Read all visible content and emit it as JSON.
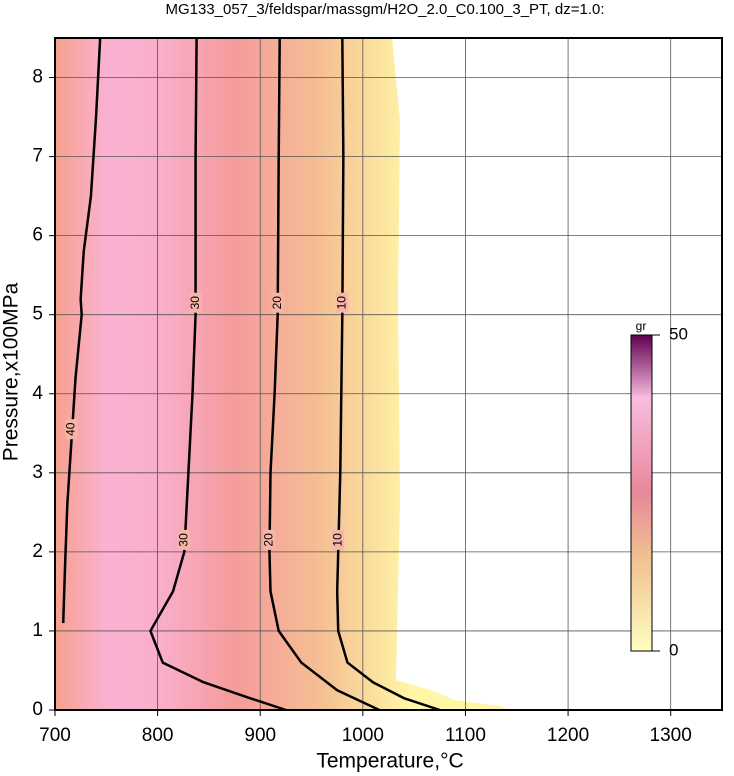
{
  "chart_data": {
    "type": "contour",
    "title": "MG133_057_3/feldspar/massgm/H2O_2.0_C0.100_3_PT, dz=1.0:",
    "xlabel": "Temperature,°C",
    "ylabel": "Pressure,x100MPa",
    "xlim": [
      700,
      1350
    ],
    "ylim": [
      0,
      8.5
    ],
    "xticks": [
      700,
      800,
      900,
      1000,
      1100,
      1200,
      1300
    ],
    "yticks": [
      0,
      1,
      2,
      3,
      4,
      5,
      6,
      7,
      8
    ],
    "grid": true,
    "line_color": "#000000",
    "contours": [
      {
        "level": 10,
        "x": [
          980,
          981,
          980,
          979,
          978,
          976,
          975,
          976,
          985,
          1010,
          1040,
          1075
        ],
        "y": [
          8.5,
          7,
          5,
          4,
          3,
          2,
          1.5,
          1,
          0.6,
          0.35,
          0.15,
          0
        ]
      },
      {
        "level": 20,
        "x": [
          919,
          918,
          917,
          914,
          910,
          909,
          910,
          918,
          940,
          975,
          1016
        ],
        "y": [
          8.5,
          7,
          5,
          4,
          3,
          2,
          1.5,
          1,
          0.6,
          0.25,
          0
        ]
      },
      {
        "level": 30,
        "x": [
          838,
          837,
          837,
          834,
          830,
          826,
          815,
          793,
          805,
          845,
          890,
          925
        ],
        "y": [
          8.5,
          7,
          5,
          4,
          3,
          2,
          1.5,
          1,
          0.6,
          0.35,
          0.15,
          0
        ]
      },
      {
        "level": 40,
        "x": [
          744,
          740,
          735,
          728,
          725,
          726,
          720,
          716,
          712,
          710,
          708
        ],
        "y": [
          8.5,
          7.5,
          6.5,
          5.8,
          5.2,
          5,
          4.2,
          3.4,
          2.6,
          1.9,
          1.1
        ]
      }
    ],
    "colorbar": {
      "label": "gr",
      "lim": [
        0,
        50
      ],
      "ticks": [
        0,
        50
      ]
    }
  }
}
